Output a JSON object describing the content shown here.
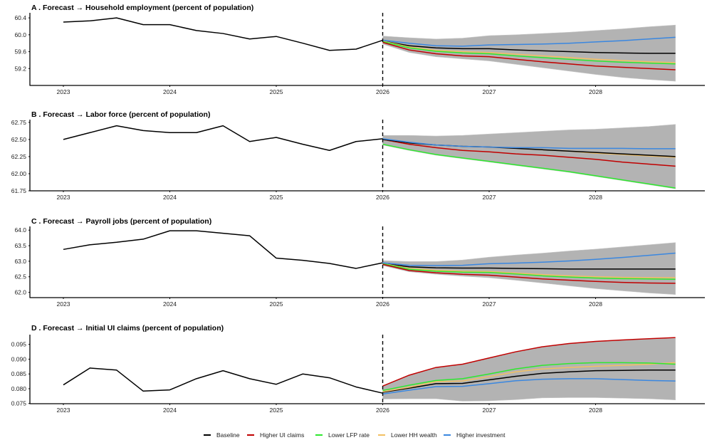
{
  "legend": [
    "Baseline",
    "Higher UI claims",
    "Lower LFP rate",
    "Lower HH wealth",
    "Higher investment"
  ],
  "colors": {
    "Baseline": "#000000",
    "Higher UI claims": "#c00000",
    "Lower LFP rate": "#2ee82e",
    "Lower HH wealth": "#f2c063",
    "Higher investment": "#3a87e0",
    "band": "#b3b3b3"
  },
  "chart_data": [
    {
      "type": "line",
      "title": "A . Forecast → Household employment (percent of population)",
      "ylim": [
        58.8,
        60.52
      ],
      "yticks": [
        59.2,
        59.6,
        60.0,
        60.4
      ],
      "ytick_labels": [
        "59.2",
        "59.6",
        "60.0",
        "60.4"
      ],
      "xticks": [
        2023,
        2024,
        2025,
        2026,
        2027,
        2028
      ],
      "forecast_start": 2026,
      "x_history": [
        2023,
        2023.25,
        2023.5,
        2023.75,
        2024,
        2024.25,
        2024.5,
        2024.75,
        2025,
        2025.25,
        2025.5,
        2025.75,
        2026
      ],
      "history": [
        60.3,
        60.33,
        60.4,
        60.24,
        60.24,
        60.1,
        60.03,
        59.9,
        59.96,
        59.8,
        59.63,
        59.66,
        59.87
      ],
      "x_forecast": [
        2026,
        2026.25,
        2026.5,
        2026.75,
        2027,
        2027.25,
        2027.5,
        2027.75,
        2028,
        2028.25,
        2028.5,
        2028.75
      ],
      "band_upper": [
        59.97,
        59.93,
        59.9,
        59.92,
        59.98,
        60.0,
        60.03,
        60.06,
        60.1,
        60.14,
        60.19,
        60.23
      ],
      "band_lower": [
        59.78,
        59.58,
        59.48,
        59.43,
        59.38,
        59.3,
        59.22,
        59.14,
        59.06,
        58.99,
        58.94,
        58.9
      ],
      "series": [
        {
          "name": "Baseline",
          "values": [
            59.85,
            59.74,
            59.69,
            59.67,
            59.67,
            59.64,
            59.62,
            59.6,
            59.58,
            59.57,
            59.56,
            59.56
          ]
        },
        {
          "name": "Lower HH wealth",
          "values": [
            59.85,
            59.71,
            59.63,
            59.6,
            59.58,
            59.54,
            59.5,
            59.46,
            59.42,
            59.39,
            59.36,
            59.34
          ]
        },
        {
          "name": "Lower LFP rate",
          "values": [
            59.84,
            59.69,
            59.61,
            59.57,
            59.55,
            59.5,
            59.46,
            59.42,
            59.38,
            59.35,
            59.33,
            59.31
          ]
        },
        {
          "name": "Higher UI claims",
          "values": [
            59.82,
            59.64,
            59.55,
            59.5,
            59.48,
            59.42,
            59.36,
            59.31,
            59.26,
            59.23,
            59.2,
            59.17
          ]
        },
        {
          "name": "Higher investment",
          "values": [
            59.87,
            59.8,
            59.74,
            59.73,
            59.76,
            59.77,
            59.78,
            59.8,
            59.83,
            59.86,
            59.9,
            59.94
          ]
        }
      ]
    },
    {
      "type": "line",
      "title": "B . Forecast → Labor force (percent of population)",
      "ylim": [
        61.75,
        62.79
      ],
      "yticks": [
        61.75,
        62.0,
        62.25,
        62.5,
        62.75
      ],
      "ytick_labels": [
        "61.75",
        "62.00",
        "62.25",
        "62.50",
        "62.75"
      ],
      "xticks": [
        2023,
        2024,
        2025,
        2026,
        2027,
        2028
      ],
      "forecast_start": 2026,
      "x_history": [
        2023,
        2023.25,
        2023.5,
        2023.75,
        2024,
        2024.25,
        2024.5,
        2024.75,
        2025,
        2025.25,
        2025.5,
        2025.75,
        2026
      ],
      "history": [
        62.5,
        62.6,
        62.7,
        62.63,
        62.6,
        62.6,
        62.7,
        62.47,
        62.53,
        62.43,
        62.34,
        62.47,
        62.51
      ],
      "x_forecast": [
        2026,
        2026.25,
        2026.5,
        2026.75,
        2027,
        2027.25,
        2027.5,
        2027.75,
        2028,
        2028.25,
        2028.5,
        2028.75
      ],
      "band_upper": [
        62.56,
        62.56,
        62.55,
        62.56,
        62.58,
        62.6,
        62.62,
        62.64,
        62.65,
        62.67,
        62.69,
        62.72
      ],
      "band_lower": [
        62.42,
        62.34,
        62.27,
        62.22,
        62.17,
        62.12,
        62.07,
        62.02,
        61.96,
        61.9,
        61.84,
        61.78
      ],
      "series": [
        {
          "name": "Lower LFP rate",
          "values": [
            62.43,
            62.35,
            62.28,
            62.23,
            62.18,
            62.13,
            62.08,
            62.03,
            61.97,
            61.91,
            61.85,
            61.79
          ]
        },
        {
          "name": "Higher UI claims",
          "values": [
            62.5,
            62.43,
            62.38,
            62.34,
            62.32,
            62.29,
            62.27,
            62.24,
            62.21,
            62.17,
            62.14,
            62.11
          ]
        },
        {
          "name": "Lower HH wealth",
          "values": [
            62.5,
            62.45,
            62.42,
            62.4,
            62.39,
            62.37,
            62.35,
            62.33,
            62.3,
            62.28,
            62.26,
            62.24
          ]
        },
        {
          "name": "Baseline",
          "values": [
            62.5,
            62.45,
            62.42,
            62.4,
            62.39,
            62.37,
            62.35,
            62.33,
            62.31,
            62.29,
            62.27,
            62.25
          ]
        },
        {
          "name": "Higher investment",
          "values": [
            62.51,
            62.46,
            62.42,
            62.4,
            62.39,
            62.38,
            62.38,
            62.37,
            62.37,
            62.37,
            62.365,
            62.365
          ]
        }
      ]
    },
    {
      "type": "line",
      "title": "C . Forecast → Payroll jobs (percent of population)",
      "ylim": [
        61.83,
        64.12
      ],
      "yticks": [
        62.0,
        62.5,
        63.0,
        63.5,
        64.0
      ],
      "ytick_labels": [
        "62.0",
        "62.5",
        "63.0",
        "63.5",
        "64.0"
      ],
      "xticks": [
        2023,
        2024,
        2025,
        2026,
        2027,
        2028
      ],
      "forecast_start": 2026,
      "x_history": [
        2023,
        2023.25,
        2023.5,
        2023.75,
        2024,
        2024.25,
        2024.5,
        2024.75,
        2025,
        2025.25,
        2025.5,
        2025.75,
        2026
      ],
      "history": [
        63.38,
        63.53,
        63.61,
        63.71,
        63.98,
        63.98,
        63.9,
        63.82,
        63.1,
        63.03,
        62.93,
        62.77,
        62.95
      ],
      "x_forecast": [
        2026,
        2026.25,
        2026.5,
        2026.75,
        2027,
        2027.25,
        2027.5,
        2027.75,
        2028,
        2028.25,
        2028.5,
        2028.75
      ],
      "band_upper": [
        63.02,
        62.99,
        62.99,
        63.04,
        63.13,
        63.2,
        63.26,
        63.33,
        63.39,
        63.46,
        63.53,
        63.6
      ],
      "band_lower": [
        62.86,
        62.66,
        62.58,
        62.52,
        62.47,
        62.39,
        62.3,
        62.21,
        62.12,
        62.05,
        61.98,
        61.93
      ],
      "series": [
        {
          "name": "Baseline",
          "values": [
            62.93,
            62.82,
            62.79,
            62.78,
            62.78,
            62.77,
            62.76,
            62.75,
            62.75,
            62.75,
            62.75,
            62.75
          ]
        },
        {
          "name": "Lower HH wealth",
          "values": [
            62.93,
            62.77,
            62.71,
            62.68,
            62.67,
            62.62,
            62.57,
            62.53,
            62.5,
            62.48,
            62.47,
            62.47
          ]
        },
        {
          "name": "Lower LFP rate",
          "values": [
            62.92,
            62.74,
            62.68,
            62.65,
            62.64,
            62.59,
            62.53,
            62.49,
            62.46,
            62.44,
            62.43,
            62.42
          ]
        },
        {
          "name": "Higher UI claims",
          "values": [
            62.9,
            62.7,
            62.63,
            62.58,
            62.55,
            62.49,
            62.43,
            62.39,
            62.35,
            62.32,
            62.3,
            62.29
          ]
        },
        {
          "name": "Higher investment",
          "values": [
            62.95,
            62.87,
            62.86,
            62.87,
            62.92,
            62.94,
            62.97,
            63.01,
            63.06,
            63.12,
            63.19,
            63.26
          ]
        }
      ]
    },
    {
      "type": "line",
      "title": "D . Forecast → Initial UI claims (percent of population)",
      "ylim": [
        0.07493,
        0.0983
      ],
      "yticks": [
        0.075,
        0.08,
        0.085,
        0.09,
        0.095
      ],
      "ytick_labels": [
        "0.075",
        "0.080",
        "0.085",
        "0.090",
        "0.095"
      ],
      "xticks": [
        2023,
        2024,
        2025,
        2026,
        2027,
        2028
      ],
      "forecast_start": 2026,
      "x_history": [
        2023,
        2023.25,
        2023.5,
        2023.75,
        2024,
        2024.25,
        2024.5,
        2024.75,
        2025,
        2025.25,
        2025.5,
        2025.75,
        2026
      ],
      "history": [
        0.0813,
        0.087,
        0.0863,
        0.0792,
        0.0796,
        0.0834,
        0.0861,
        0.0834,
        0.0815,
        0.085,
        0.0837,
        0.0806,
        0.0785
      ],
      "x_forecast": [
        2026,
        2026.25,
        2026.5,
        2026.75,
        2027,
        2027.25,
        2027.5,
        2027.75,
        2028,
        2028.25,
        2028.5,
        2028.75
      ],
      "band_upper": [
        0.0808,
        0.0845,
        0.0871,
        0.0882,
        0.0903,
        0.0924,
        0.0941,
        0.0952,
        0.0959,
        0.0964,
        0.0968,
        0.0971
      ],
      "band_lower": [
        0.0765,
        0.0766,
        0.0766,
        0.0758,
        0.0759,
        0.0763,
        0.0769,
        0.077,
        0.077,
        0.0768,
        0.0766,
        0.0762
      ],
      "series": [
        {
          "name": "Higher investment",
          "values": [
            0.0782,
            0.0795,
            0.0807,
            0.0808,
            0.0817,
            0.0827,
            0.0832,
            0.0834,
            0.0834,
            0.0831,
            0.0828,
            0.0826
          ]
        },
        {
          "name": "Baseline",
          "values": [
            0.0788,
            0.0802,
            0.0817,
            0.0818,
            0.083,
            0.0842,
            0.0852,
            0.0857,
            0.0861,
            0.0862,
            0.0863,
            0.0863
          ]
        },
        {
          "name": "Lower HH wealth",
          "values": [
            0.079,
            0.0805,
            0.0824,
            0.0826,
            0.0841,
            0.0857,
            0.0867,
            0.0872,
            0.0876,
            0.0879,
            0.0883,
            0.0888
          ]
        },
        {
          "name": "Lower LFP rate",
          "values": [
            0.0794,
            0.0812,
            0.0828,
            0.0834,
            0.085,
            0.0867,
            0.0879,
            0.0885,
            0.0888,
            0.0888,
            0.0887,
            0.0883
          ]
        },
        {
          "name": "Higher UI claims",
          "values": [
            0.0809,
            0.0846,
            0.0872,
            0.0883,
            0.0904,
            0.0925,
            0.0942,
            0.0953,
            0.096,
            0.0965,
            0.0969,
            0.0973
          ]
        }
      ]
    }
  ]
}
